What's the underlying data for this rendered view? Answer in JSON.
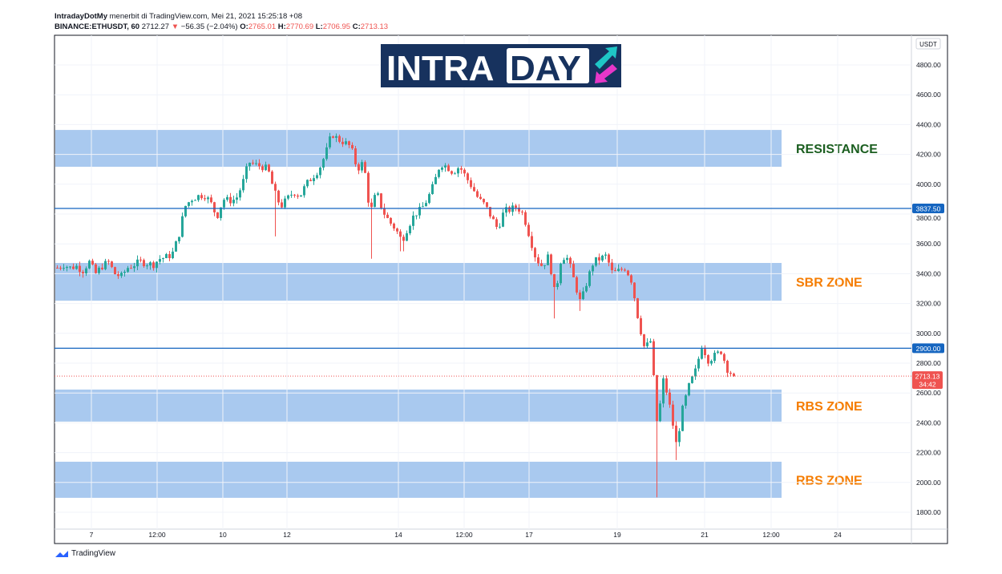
{
  "header": {
    "author": "IntradayDotMy",
    "published": "menerbit di TradingView.com, Mei 21, 2021 15:25:18 +08",
    "symbol": "BINANCE:ETHUSDT, 60",
    "last": "2712.27",
    "change": "−56.35 (−2.04%)",
    "o_label": "O:",
    "o": "2765.01",
    "h_label": "H:",
    "h": "2770.69",
    "l_label": "L:",
    "l": "2706.95",
    "c_label": "C:",
    "c": "2713.13"
  },
  "logo": {
    "text_left": "INTRA",
    "text_right": "DAY"
  },
  "footer": {
    "brand": "TradingView"
  },
  "chart_data": {
    "type": "candlestick",
    "currency": "USDT",
    "ylim": [
      1700,
      4950
    ],
    "y_ticks": [
      4800,
      4600,
      4400,
      4200,
      4000,
      3800,
      3600,
      3400,
      3200,
      3000,
      2800,
      2600,
      2400,
      2200,
      2000,
      1800
    ],
    "y_tick_labels": [
      "4800.00",
      "4600.00",
      "4400.00",
      "4200.00",
      "4000.00",
      "3800.00",
      "3600.00",
      "3400.00",
      "3200.00",
      "3000.00",
      "2800.00",
      "2600.00",
      "2400.00",
      "2200.00",
      "2000.00",
      "1800.00"
    ],
    "x_tick_labels": [
      "7",
      "12:00",
      "10",
      "12",
      "14",
      "12:00",
      "17",
      "19",
      "21",
      "12:00",
      "24"
    ],
    "closes": [
      3440,
      3460,
      3440,
      3450,
      3420,
      3480,
      3400,
      3450,
      3480,
      3400,
      3380,
      3440,
      3460,
      3480,
      3470,
      3460,
      3500,
      3510,
      3530,
      3650,
      3850,
      3900,
      3920,
      3930,
      3880,
      3780,
      3900,
      3890,
      3900,
      4000,
      4150,
      4130,
      4120,
      4100,
      3950,
      3850,
      3900,
      3950,
      3920,
      4000,
      4050,
      4100,
      4200,
      4340,
      4300,
      4280,
      4250,
      4100,
      4150,
      3800,
      3950,
      3820,
      3750,
      3700,
      3620,
      3720,
      3800,
      3830,
      3900,
      4000,
      4140,
      4120,
      4080,
      4120,
      4050,
      3980,
      3900,
      3860,
      3780,
      3700,
      3820,
      3830,
      3850,
      3800,
      3650,
      3500,
      3450,
      3520,
      3250,
      3520,
      3500,
      3350,
      3200,
      3350,
      3480,
      3500,
      3520,
      3400,
      3420,
      3440,
      3350,
      3100,
      2900,
      2950,
      2380,
      2700,
      2500,
      2250,
      2500,
      2650,
      2750,
      2920,
      2820,
      2850,
      2880,
      2760,
      2713
    ],
    "spike_lows": [
      {
        "i": 34,
        "low": 3650
      },
      {
        "i": 49,
        "low": 3500
      },
      {
        "i": 54,
        "low": 3550
      },
      {
        "i": 78,
        "low": 3100
      },
      {
        "i": 82,
        "low": 3150
      },
      {
        "i": 94,
        "low": 1900
      },
      {
        "i": 97,
        "low": 2150
      }
    ],
    "zones": [
      {
        "label": "RESISTANCE",
        "from": 4117,
        "to": 4364,
        "label_color": "#1b5e20"
      },
      {
        "label": "SBR ZONE",
        "from": 3219,
        "to": 3472,
        "label_color": "#f57c00"
      },
      {
        "label": "RBS ZONE",
        "from": 2408,
        "to": 2623,
        "label_color": "#f57c00"
      },
      {
        "label": "RBS ZONE",
        "from": 1897,
        "to": 2139,
        "label_color": "#f57c00"
      }
    ],
    "horizontal_lines": [
      {
        "value": 3837.5,
        "label": "3837.50"
      },
      {
        "value": 2900,
        "label": "2900.00"
      }
    ],
    "current_price": {
      "value": 2713.13,
      "label": "2713.13",
      "countdown": "34:42"
    },
    "colors": {
      "up": "#26a69a",
      "down": "#ef5350",
      "zone": "#a4c6ee",
      "line": "#1565c0"
    }
  }
}
